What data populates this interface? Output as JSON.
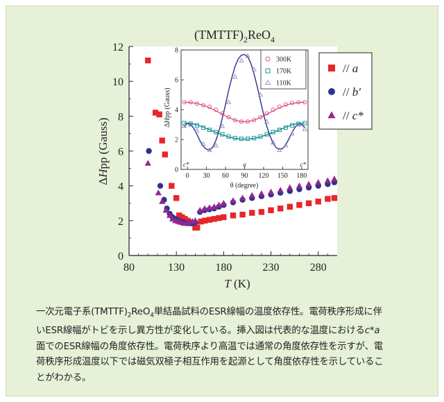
{
  "chart_data": [
    {
      "type": "scatter",
      "title": "(TMTTF)",
      "title_sub": "2",
      "title_mid": "ReO",
      "title_sub2": "4",
      "xlabel": "T",
      "xunit": " (K)",
      "ylabel_prefix": "Δ",
      "ylabel_italic": "H",
      "ylabel_rest": "pp (Gauss)",
      "xlim": [
        80,
        300
      ],
      "ylim": [
        0,
        12
      ],
      "xticks": [
        80,
        130,
        180,
        230,
        280
      ],
      "yticks": [
        0,
        2,
        4,
        6,
        8,
        10,
        12
      ],
      "legend_position": "top-right",
      "series": [
        {
          "name": "// a",
          "label_prefix": "// ",
          "label_axis": "a",
          "label_suffix": "",
          "color": "#e8262a",
          "marker": "square",
          "x": [
            100,
            108,
            112,
            115,
            118,
            125,
            130,
            133,
            136,
            139,
            142,
            145,
            148,
            150,
            152,
            156,
            160,
            165,
            170,
            175,
            180,
            190,
            200,
            210,
            220,
            230,
            240,
            250,
            260,
            270,
            280,
            290,
            297
          ],
          "y": [
            11.2,
            8.2,
            8.1,
            6.6,
            5.8,
            4.0,
            3.3,
            2.3,
            2.2,
            2.1,
            2.0,
            1.9,
            1.85,
            1.6,
            1.6,
            1.95,
            2.0,
            2.05,
            2.1,
            2.15,
            2.2,
            2.3,
            2.35,
            2.45,
            2.5,
            2.6,
            2.7,
            2.8,
            2.9,
            3.0,
            3.1,
            3.25,
            3.3
          ]
        },
        {
          "name": "// b'",
          "label_prefix": "// ",
          "label_axis": "b",
          "label_suffix": "′",
          "color": "#2e3192",
          "marker": "circle",
          "x": [
            101,
            113,
            117,
            120,
            123,
            126,
            129,
            132,
            135,
            138,
            141,
            144,
            147,
            150,
            155,
            160,
            165,
            170,
            175,
            180,
            190,
            200,
            210,
            220,
            230,
            240,
            250,
            260,
            270,
            280,
            290,
            297
          ],
          "y": [
            6.0,
            4.0,
            3.2,
            2.7,
            2.4,
            2.2,
            2.1,
            2.0,
            1.95,
            1.9,
            1.85,
            1.85,
            1.85,
            1.9,
            2.5,
            2.6,
            2.65,
            2.7,
            2.8,
            2.9,
            3.05,
            3.2,
            3.3,
            3.4,
            3.5,
            3.6,
            3.7,
            3.8,
            3.9,
            4.0,
            4.1,
            4.2
          ]
        },
        {
          "name": "// c*",
          "label_prefix": "// ",
          "label_axis": "c",
          "label_suffix": "*",
          "color": "#92278f",
          "marker": "triangle",
          "x": [
            100,
            111,
            115,
            119,
            123,
            126,
            129,
            132,
            135,
            138,
            141,
            144,
            147,
            150,
            155,
            160,
            165,
            170,
            175,
            180,
            190,
            200,
            210,
            220,
            230,
            240,
            250,
            260,
            270,
            280,
            290,
            297
          ],
          "y": [
            5.3,
            3.6,
            3.1,
            2.6,
            2.3,
            2.1,
            2.0,
            1.95,
            1.9,
            1.85,
            1.85,
            1.9,
            1.95,
            2.0,
            2.6,
            2.7,
            2.75,
            2.8,
            2.9,
            3.0,
            3.15,
            3.3,
            3.45,
            3.55,
            3.65,
            3.75,
            3.9,
            4.0,
            4.1,
            4.2,
            4.3,
            4.4
          ]
        }
      ]
    },
    {
      "type": "scatter",
      "xlabel": "θ (degree)",
      "ylabel_prefix": "Δ",
      "ylabel_italic": "H",
      "ylabel_rest": "pp (Gauss)",
      "xlim": [
        -10,
        190
      ],
      "ylim": [
        0,
        8
      ],
      "xticks": [
        0,
        30,
        60,
        90,
        120,
        150,
        180
      ],
      "yticks": [
        0,
        2,
        4,
        6,
        8
      ],
      "axis_labels": [
        "c*",
        "a",
        "c*"
      ],
      "legend_position": "top-right",
      "series": [
        {
          "name": "300K",
          "color": "#e04a80",
          "marker": "circle",
          "x": [
            -5,
            5,
            15,
            25,
            35,
            45,
            55,
            65,
            75,
            85,
            95,
            105,
            115,
            125,
            135,
            145,
            155,
            165,
            175,
            185
          ],
          "y": [
            4.5,
            4.5,
            4.4,
            4.3,
            4.2,
            4.0,
            3.75,
            3.5,
            3.3,
            3.2,
            3.2,
            3.3,
            3.5,
            3.75,
            4.0,
            4.2,
            4.35,
            4.45,
            4.5,
            4.5
          ],
          "curve_x": [
            -5,
            5,
            15,
            25,
            35,
            45,
            55,
            65,
            75,
            85,
            95,
            105,
            115,
            125,
            135,
            145,
            155,
            165,
            175,
            185
          ],
          "curve_y": [
            4.5,
            4.48,
            4.42,
            4.3,
            4.13,
            3.92,
            3.7,
            3.48,
            3.3,
            3.2,
            3.2,
            3.3,
            3.48,
            3.7,
            3.92,
            4.13,
            4.3,
            4.42,
            4.48,
            4.5
          ]
        },
        {
          "name": "170K",
          "color": "#008b8b",
          "marker": "square",
          "x": [
            -5,
            5,
            15,
            25,
            35,
            45,
            55,
            65,
            75,
            85,
            95,
            105,
            115,
            125,
            135,
            145,
            155,
            165,
            175,
            185
          ],
          "y": [
            3.1,
            3.05,
            2.95,
            2.8,
            2.65,
            2.5,
            2.35,
            2.2,
            2.1,
            2.05,
            2.05,
            2.1,
            2.2,
            2.35,
            2.5,
            2.65,
            2.8,
            2.95,
            3.05,
            3.1
          ],
          "curve_x": [
            -5,
            5,
            15,
            25,
            35,
            45,
            55,
            65,
            75,
            85,
            95,
            105,
            115,
            125,
            135,
            145,
            155,
            165,
            175,
            185
          ],
          "curve_y": [
            3.1,
            3.08,
            2.98,
            2.83,
            2.65,
            2.48,
            2.32,
            2.18,
            2.08,
            2.03,
            2.03,
            2.08,
            2.18,
            2.32,
            2.48,
            2.65,
            2.83,
            2.98,
            3.08,
            3.1
          ]
        },
        {
          "name": "110K",
          "color": "#8a8ac4",
          "marker": "triangle",
          "x": [
            -5,
            5,
            15,
            25,
            35,
            45,
            55,
            65,
            75,
            85,
            95,
            105,
            115,
            125,
            135,
            145,
            155,
            165,
            175,
            185
          ],
          "y": [
            2.9,
            3.0,
            2.6,
            1.7,
            1.3,
            1.6,
            2.9,
            4.5,
            6.2,
            7.3,
            7.6,
            6.7,
            5.0,
            3.2,
            1.8,
            1.3,
            1.6,
            2.4,
            3.0,
            2.7
          ],
          "curve_x": [
            -5,
            0,
            5,
            10,
            15,
            20,
            25,
            30,
            35,
            40,
            45,
            50,
            55,
            60,
            65,
            70,
            75,
            80,
            85,
            90,
            95,
            100,
            105,
            110,
            115,
            120,
            125,
            130,
            135,
            140,
            145,
            150,
            155,
            160,
            165,
            170,
            175,
            180,
            185
          ],
          "curve_y": [
            2.85,
            3.1,
            3.0,
            2.75,
            2.35,
            1.9,
            1.55,
            1.35,
            1.3,
            1.5,
            1.95,
            2.6,
            3.45,
            4.35,
            5.3,
            6.15,
            6.9,
            7.4,
            7.65,
            7.7,
            7.55,
            7.1,
            6.4,
            5.55,
            4.6,
            3.7,
            2.9,
            2.25,
            1.75,
            1.45,
            1.35,
            1.4,
            1.65,
            2.05,
            2.5,
            2.85,
            3.05,
            3.0,
            2.8
          ]
        }
      ]
    }
  ],
  "caption": {
    "line1": "一次元電子系(TMTTF)",
    "line1_sub": "2",
    "line1b": "ReO",
    "line1_sub2": "4",
    "line1c": "単結晶試料のESR線幅の温度依存性。電荷秩序形成に伴",
    "line2": "いESR線幅がトビを示し異方性が変化している。挿入図は代表的な温度における",
    "line2_italic": "c*a",
    "line3": "面でのESR線幅の角度依存性。電荷秩序より高温では通常の角度依存性を示すが、電",
    "line4": "荷秩序形成温度以下では磁気双極子相互作用を起源として角度依存性を示しているこ",
    "line5": "とがわかる。"
  },
  "colors": {
    "panel_bg": "#e6f1d8",
    "panel_border": "#c7d9b2",
    "plot_bg": "#ffffff"
  }
}
